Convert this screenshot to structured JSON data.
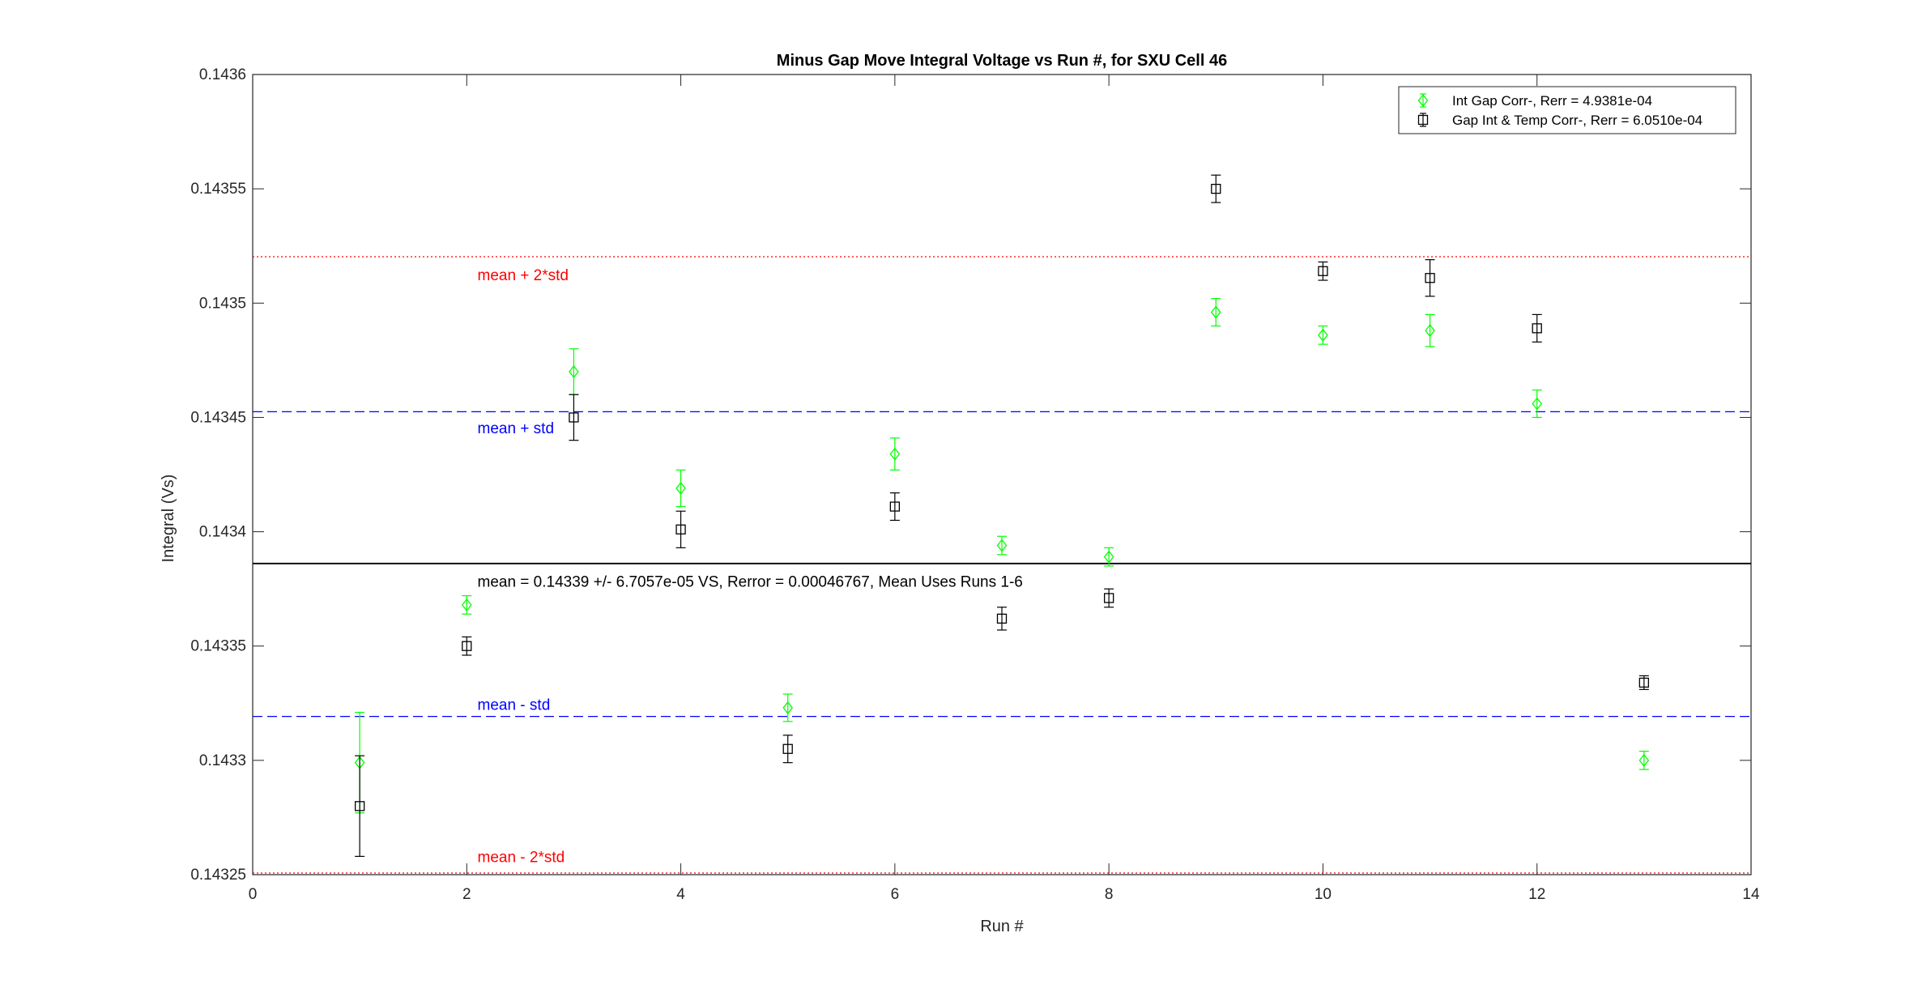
{
  "chart_data": {
    "type": "scatter",
    "title": "Minus Gap Move Integral Voltage vs Run #, for SXU Cell 46",
    "xlabel": "Run #",
    "ylabel": "Integral (Vs)",
    "xlim": [
      0,
      14
    ],
    "ylim": [
      0.14325,
      0.1436
    ],
    "xticks": [
      0,
      2,
      4,
      6,
      8,
      10,
      12,
      14
    ],
    "xtick_labels": [
      "0",
      "2",
      "4",
      "6",
      "8",
      "10",
      "12",
      "14"
    ],
    "yticks": [
      0.14325,
      0.1433,
      0.14335,
      0.1434,
      0.14345,
      0.1435,
      0.14355,
      0.1436
    ],
    "ytick_labels": [
      "0.14325",
      "0.1433",
      "0.14335",
      "0.1434",
      "0.14345",
      "0.1435",
      "0.14355",
      "0.1436"
    ],
    "grid": false,
    "legend_position": "top-right",
    "series": [
      {
        "name": "Int Gap Corr-, Rerr = 4.9381e-04",
        "marker": "diamond",
        "color": "#00ff00",
        "points": [
          {
            "x": 1,
            "y": 0.143299,
            "err": 2.2e-05
          },
          {
            "x": 2,
            "y": 0.143368,
            "err": 4e-06
          },
          {
            "x": 3,
            "y": 0.14347,
            "err": 1e-05
          },
          {
            "x": 4,
            "y": 0.143419,
            "err": 8e-06
          },
          {
            "x": 5,
            "y": 0.143323,
            "err": 6e-06
          },
          {
            "x": 6,
            "y": 0.143434,
            "err": 7e-06
          },
          {
            "x": 7,
            "y": 0.143394,
            "err": 4e-06
          },
          {
            "x": 8,
            "y": 0.143389,
            "err": 4e-06
          },
          {
            "x": 9,
            "y": 0.143496,
            "err": 6e-06
          },
          {
            "x": 10,
            "y": 0.143486,
            "err": 4e-06
          },
          {
            "x": 11,
            "y": 0.143488,
            "err": 7e-06
          },
          {
            "x": 12,
            "y": 0.143456,
            "err": 6e-06
          },
          {
            "x": 13,
            "y": 0.1433,
            "err": 4e-06
          }
        ]
      },
      {
        "name": "Gap Int & Temp Corr-, Rerr = 6.0510e-04",
        "marker": "square",
        "color": "#000000",
        "points": [
          {
            "x": 1,
            "y": 0.14328,
            "err": 2.2e-05
          },
          {
            "x": 2,
            "y": 0.14335,
            "err": 4e-06
          },
          {
            "x": 3,
            "y": 0.14345,
            "err": 1e-05
          },
          {
            "x": 4,
            "y": 0.143401,
            "err": 8e-06
          },
          {
            "x": 5,
            "y": 0.143305,
            "err": 6e-06
          },
          {
            "x": 6,
            "y": 0.143411,
            "err": 6e-06
          },
          {
            "x": 7,
            "y": 0.143362,
            "err": 5e-06
          },
          {
            "x": 8,
            "y": 0.143371,
            "err": 4e-06
          },
          {
            "x": 9,
            "y": 0.14355,
            "err": 6e-06
          },
          {
            "x": 10,
            "y": 0.143514,
            "err": 4e-06
          },
          {
            "x": 11,
            "y": 0.143511,
            "err": 8e-06
          },
          {
            "x": 12,
            "y": 0.143489,
            "err": 6e-06
          },
          {
            "x": 13,
            "y": 0.143334,
            "err": 3e-06
          }
        ]
      }
    ],
    "reference_lines": [
      {
        "y": 0.1435203,
        "color": "#ff0000",
        "style": "dotted",
        "label": "mean + 2*std",
        "label_x": 2.1,
        "label_y": 0.1435125
      },
      {
        "y": 0.1434525,
        "color": "#0000ff",
        "style": "dashed",
        "label": "mean + std",
        "label_x": 2.1,
        "label_y": 0.1434455
      },
      {
        "y": 0.1433861,
        "color": "#000000",
        "style": "solid",
        "label": "mean = 0.14339 +/- 6.7057e-05 VS, Rerror = 0.00046767, Mean Uses Runs 1-6",
        "label_x": 2.1,
        "label_y": 0.1433785
      },
      {
        "y": 0.1433192,
        "color": "#0000ff",
        "style": "dashed",
        "label": "mean - std",
        "label_x": 2.1,
        "label_y": 0.1433245
      },
      {
        "y": 0.1432507,
        "color": "#ff0000",
        "style": "dotted",
        "label": "mean - 2*std",
        "label_x": 2.1,
        "label_y": 0.143258
      }
    ]
  }
}
